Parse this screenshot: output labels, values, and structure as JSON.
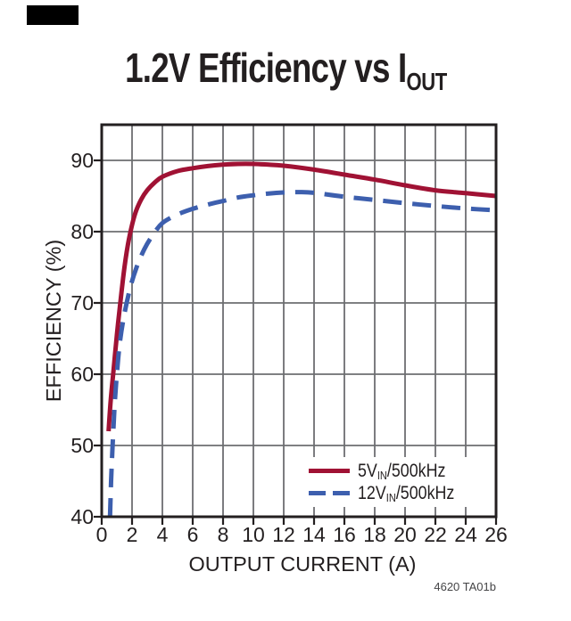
{
  "page": {
    "background": "#ffffff"
  },
  "marker": {
    "color": "#000000"
  },
  "title": {
    "prefix": "1.2V Efficiency vs I",
    "sub": "OUT"
  },
  "footnote": "4620 TA01b",
  "chart_data": {
    "type": "line",
    "title": "1.2V Efficiency vs IOUT",
    "xlabel": "OUTPUT CURRENT (A)",
    "ylabel": "EFFICIENCY (%)",
    "xlim": [
      0,
      26
    ],
    "ylim": [
      40,
      95
    ],
    "x_ticks": [
      0,
      2,
      4,
      6,
      8,
      10,
      12,
      14,
      16,
      18,
      20,
      22,
      24,
      26
    ],
    "y_ticks": [
      40,
      50,
      60,
      70,
      80,
      90
    ],
    "grid": "on",
    "grid_color": "#6d6e71",
    "frame_color": "#231F20",
    "legend_position": "inside-bottom-right",
    "series": [
      {
        "name": "5VIN/500kHz",
        "name_parts": {
          "prefix": "5V",
          "sub": "IN",
          "suffix": "/500kHz"
        },
        "color": "#A01234",
        "style": "solid",
        "points": [
          [
            0.45,
            52
          ],
          [
            0.6,
            56.5
          ],
          [
            0.8,
            61
          ],
          [
            1,
            65.5
          ],
          [
            1.2,
            69.5
          ],
          [
            1.5,
            75
          ],
          [
            1.8,
            79
          ],
          [
            2.2,
            82.5
          ],
          [
            2.6,
            84.5
          ],
          [
            3,
            85.8
          ],
          [
            3.5,
            86.9
          ],
          [
            4,
            87.7
          ],
          [
            5,
            88.5
          ],
          [
            6,
            88.9
          ],
          [
            7,
            89.2
          ],
          [
            8,
            89.4
          ],
          [
            9,
            89.5
          ],
          [
            10,
            89.5
          ],
          [
            11,
            89.4
          ],
          [
            12,
            89.25
          ],
          [
            14,
            88.7
          ],
          [
            16,
            88
          ],
          [
            18,
            87.3
          ],
          [
            20,
            86.5
          ],
          [
            22,
            85.8
          ],
          [
            24,
            85.4
          ],
          [
            26,
            85
          ]
        ]
      },
      {
        "name": "12VIN/500kHz",
        "name_parts": {
          "prefix": "12V",
          "sub": "IN",
          "suffix": "/500kHz"
        },
        "color": "#3D5FAE",
        "style": "dashed",
        "points": [
          [
            0.55,
            40
          ],
          [
            0.62,
            45
          ],
          [
            0.72,
            50
          ],
          [
            0.85,
            55.5
          ],
          [
            1,
            60
          ],
          [
            1.2,
            64.5
          ],
          [
            1.5,
            68.5
          ],
          [
            1.9,
            72.3
          ],
          [
            2.3,
            75
          ],
          [
            2.8,
            77.5
          ],
          [
            3.3,
            79.3
          ],
          [
            4,
            81.2
          ],
          [
            5,
            82.4
          ],
          [
            6,
            83.2
          ],
          [
            7,
            83.8
          ],
          [
            8,
            84.3
          ],
          [
            9,
            84.8
          ],
          [
            10,
            85.1
          ],
          [
            11,
            85.35
          ],
          [
            12,
            85.5
          ],
          [
            13,
            85.55
          ],
          [
            14,
            85.45
          ],
          [
            16,
            84.9
          ],
          [
            18,
            84.45
          ],
          [
            20,
            84
          ],
          [
            22,
            83.6
          ],
          [
            24,
            83.25
          ],
          [
            26,
            83
          ]
        ]
      }
    ],
    "footnote": "4620 TA01b"
  }
}
